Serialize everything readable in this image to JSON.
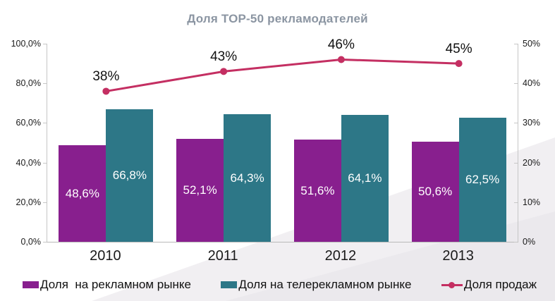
{
  "title": "Доля ТОР-50 рекламодателей",
  "colors": {
    "purple": "#881f8e",
    "teal": "#2d7787",
    "line": "#c42f62",
    "title_gray": "#8b95a2",
    "axis_gray": "#c6c6c6",
    "text_black": "#1a1a1a"
  },
  "chart_data": {
    "type": "bar",
    "title": "Доля ТОР-50 рекламодателей",
    "categories": [
      "2010",
      "2011",
      "2012",
      "2013"
    ],
    "series": [
      {
        "name": "Доля  на рекламном рынке",
        "type": "bar",
        "color_key": "purple",
        "axis": "left",
        "values": [
          48.6,
          52.1,
          51.6,
          50.6
        ],
        "labels": [
          "48,6%",
          "52,1%",
          "51,6%",
          "50,6%"
        ]
      },
      {
        "name": "Доля на телерекламном рынке",
        "type": "bar",
        "color_key": "teal",
        "axis": "left",
        "values": [
          66.8,
          64.3,
          64.1,
          62.5
        ],
        "labels": [
          "66,8%",
          "64,3%",
          "64,1%",
          "62,5%"
        ]
      },
      {
        "name": "Доля продаж",
        "type": "line",
        "color_key": "line",
        "axis": "right",
        "values": [
          38,
          43,
          46,
          45
        ],
        "labels": [
          "38%",
          "43%",
          "46%",
          "45%"
        ]
      }
    ],
    "left_axis": {
      "min": 0,
      "max": 100,
      "ticks": [
        "100,0%",
        "80,0%",
        "60,0%",
        "40,0%",
        "20,0%",
        "0,0%"
      ]
    },
    "right_axis": {
      "min": 0,
      "max": 50,
      "ticks": [
        "50%",
        "40%",
        "30%",
        "20%",
        "10%",
        "0%"
      ]
    },
    "grid": false,
    "legend_position": "bottom"
  }
}
